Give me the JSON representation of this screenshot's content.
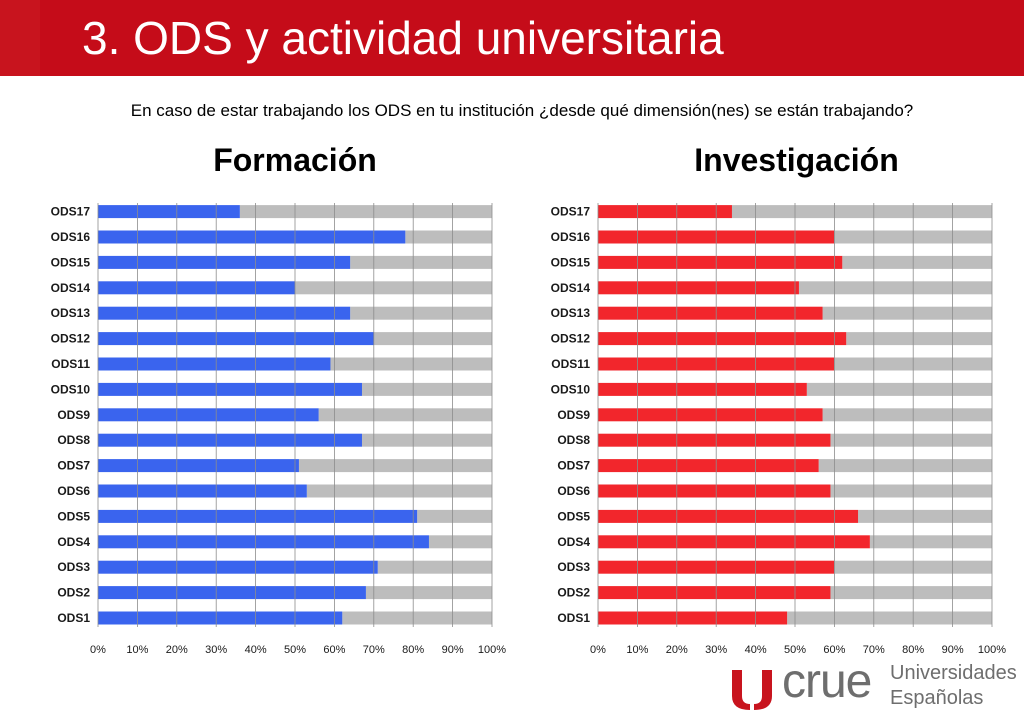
{
  "header": {
    "title": "3. ODS y actividad universitaria",
    "question": "En caso de estar trabajando los ODS en tu institución ¿desde qué dimensión(nes) se están trabajando?"
  },
  "colors": {
    "header_red": "#c8141e",
    "formacion_bar": "#3a64ee",
    "investigacion_bar": "#f2262c",
    "remainder": "#bdbdbd",
    "logo_red": "#c8141e",
    "logo_gray": "#6e6e6e"
  },
  "chart_data": [
    {
      "type": "bar",
      "orientation": "horizontal",
      "stacked_100": true,
      "title": "Formación",
      "categories": [
        "ODS\u001f1\u001f",
        "ODS\u001f2\u001f",
        "ODS\u001f3\u001f",
        "ODS\u001f4\u001f",
        "ODS\u001f5\u001f",
        "ODS\u001f6\u001f",
        "ODS\u001f7\u001f",
        "ODS\u001f8\u001f",
        "ODS\u001f9\u001f",
        "ODS\u001f10\u001f",
        "ODS\u001f11\u001f",
        "ODS\u001f12\u001f",
        "ODS\u001f13\u001f",
        "ODS\u001f14\u001f",
        "ODS\u001f15\u001f",
        "ODS\u001f16\u001f",
        "ODS\u001f17\u001f"
      ],
      "values": [
        62,
        68,
        71,
        84,
        81,
        53,
        51,
        67,
        56,
        67,
        59,
        70,
        64,
        50,
        64,
        78,
        36
      ],
      "xlim": [
        0,
        100
      ],
      "xticks": [
        "0%\u001f",
        "10%\u001f",
        "20%\u001f",
        "30%\u001f",
        "40%\u001f",
        "50%\u001f",
        "60%\u001f",
        "70%\u001f",
        "80%\u001f",
        "90%\u001f",
        "100%"
      ],
      "grid": true
    },
    {
      "type": "bar",
      "orientation": "horizontal",
      "stacked_100": true,
      "title": "Investigación",
      "categories": [
        "ODS\u001f1\u001f",
        "ODS\u001f2\u001f",
        "ODS\u001f3\u001f",
        "ODS\u001f4\u001f",
        "ODS\u001f5\u001f",
        "ODS\u001f6\u001f",
        "ODS\u001f7\u001f",
        "ODS\u001f8\u001f",
        "ODS\u001f9\u001f",
        "ODS\u001f10\u001f",
        "ODS\u001f11\u001f",
        "ODS\u001f12\u001f",
        "ODS\u001f13\u001f",
        "ODS\u001f14\u001f",
        "ODS\u001f15\u001f",
        "ODS\u001f16\u001f",
        "ODS\u001f17\u001f"
      ],
      "values": [
        48,
        59,
        60,
        69,
        66,
        59,
        56,
        59,
        57,
        53,
        60,
        63,
        57,
        51,
        62,
        60,
        34
      ],
      "xlim": [
        0,
        100
      ],
      "xticks": [
        "0%\u001f",
        "10%\u001f",
        "20%\u001f",
        "30%\u001f",
        "40%\u001f",
        "50%\u001f",
        "60%\u001f",
        "70%\u001f",
        "80%\u001f",
        "90%\u001f",
        "100%"
      ],
      "grid": true
    }
  ],
  "logo": {
    "wordmark": "crue",
    "line1": "Universidades",
    "line2": "Españolas"
  }
}
